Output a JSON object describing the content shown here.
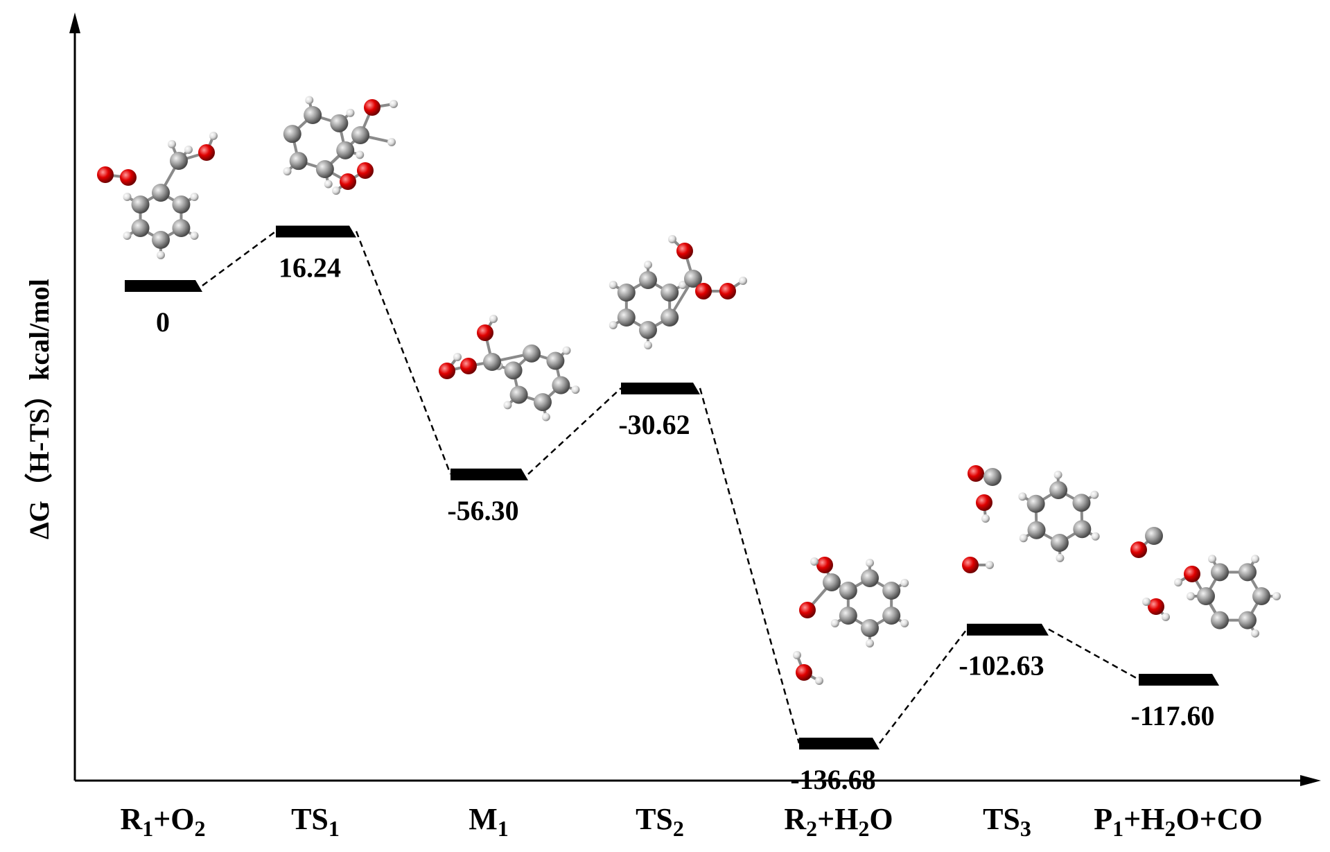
{
  "chart_data": {
    "type": "line",
    "ylabel": "∆G（H-TS）kcal/mol",
    "xlabel": "",
    "title": "",
    "categories": [
      {
        "main": "R",
        "sub": "1",
        "rest": "+O",
        "sub2": "2",
        "rest2": ""
      },
      {
        "main": "TS",
        "sub": "1",
        "rest": "",
        "sub2": "",
        "rest2": ""
      },
      {
        "main": "M",
        "sub": "1",
        "rest": "",
        "sub2": "",
        "rest2": ""
      },
      {
        "main": "TS",
        "sub": "2",
        "rest": "",
        "sub2": "",
        "rest2": ""
      },
      {
        "main": "R",
        "sub": "2",
        "rest": "+H",
        "sub2": "2",
        "rest2": "O"
      },
      {
        "main": "TS",
        "sub": "3",
        "rest": "",
        "sub2": "",
        "rest2": ""
      },
      {
        "main": "P",
        "sub": "1",
        "rest": "+H",
        "sub2": "2",
        "rest2": "O+CO"
      }
    ],
    "values": [
      0,
      16.24,
      -56.3,
      -30.62,
      -136.68,
      -102.63,
      -117.6
    ],
    "value_labels": [
      "0",
      "16.24",
      "-56.30",
      "-30.62",
      "-136.68",
      "-102.63",
      "-117.60"
    ],
    "ylim": [
      -160,
      60
    ],
    "colors": {
      "axis": "#000000",
      "level": "#000000",
      "connector": "#000000",
      "carbon": "#9a9a9a",
      "oxygen": "#e00000",
      "hydrogen": "#e8e8e8"
    }
  }
}
